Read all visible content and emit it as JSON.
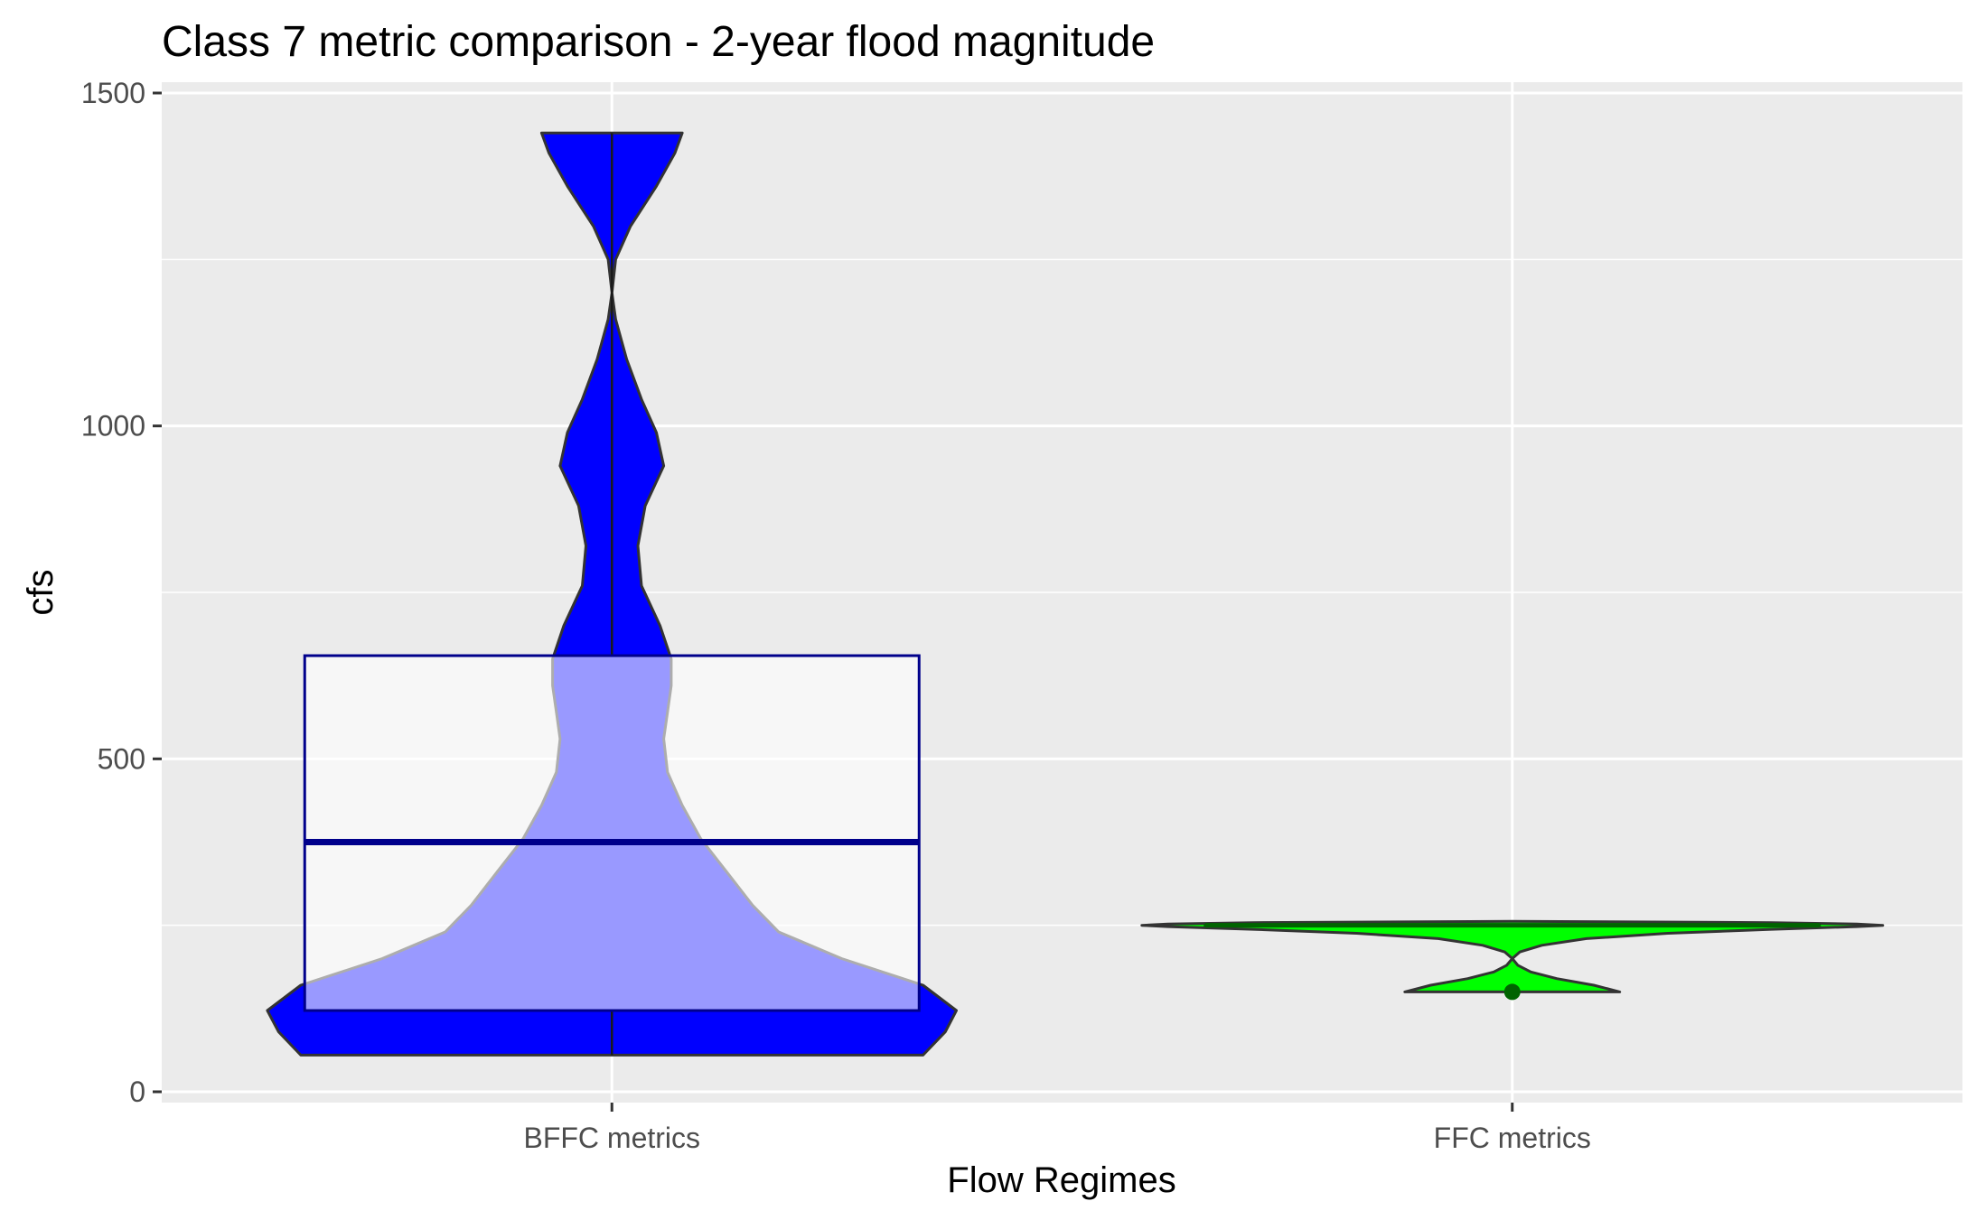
{
  "chart_data": {
    "type": "violin",
    "title": "Class 7 metric comparison - 2-year flood magnitude",
    "xlabel": "Flow Regimes",
    "ylabel": "cfs",
    "ylim": [
      0,
      1500
    ],
    "yticks": [
      0,
      500,
      1000,
      1500
    ],
    "y_minor_gridlines": [
      250,
      750,
      1250
    ],
    "grid": true,
    "legend": "none",
    "categories": [
      "BFFC metrics",
      "FFC metrics"
    ],
    "series": [
      {
        "category": "BFFC metrics",
        "fill": "#0000ff",
        "min": 55,
        "max": 1440,
        "box": {
          "q1": 122,
          "median": 375,
          "q3": 655,
          "whisker_low": 55,
          "whisker_high": 1440
        },
        "density_profile": [
          [
            55,
            0.84
          ],
          [
            90,
            0.9
          ],
          [
            122,
            0.93
          ],
          [
            160,
            0.84
          ],
          [
            200,
            0.62
          ],
          [
            240,
            0.45
          ],
          [
            280,
            0.38
          ],
          [
            330,
            0.31
          ],
          [
            380,
            0.24
          ],
          [
            430,
            0.19
          ],
          [
            480,
            0.15
          ],
          [
            530,
            0.14
          ],
          [
            570,
            0.15
          ],
          [
            610,
            0.16
          ],
          [
            650,
            0.16
          ],
          [
            700,
            0.13
          ],
          [
            760,
            0.08
          ],
          [
            820,
            0.07
          ],
          [
            880,
            0.09
          ],
          [
            940,
            0.14
          ],
          [
            990,
            0.12
          ],
          [
            1040,
            0.08
          ],
          [
            1100,
            0.04
          ],
          [
            1160,
            0.01
          ],
          [
            1200,
            0.0
          ],
          [
            1250,
            0.01
          ],
          [
            1300,
            0.05
          ],
          [
            1360,
            0.12
          ],
          [
            1410,
            0.17
          ],
          [
            1440,
            0.19
          ]
        ]
      },
      {
        "category": "FFC metrics",
        "fill": "#00ff00",
        "min": 150,
        "max": 250,
        "box": {
          "q1": 250,
          "median": 250,
          "q3": 250,
          "whisker_low": 250,
          "whisker_high": 250
        },
        "outliers": [
          150
        ],
        "density_profile": [
          [
            150,
            0.29
          ],
          [
            160,
            0.22
          ],
          [
            170,
            0.12
          ],
          [
            180,
            0.05
          ],
          [
            190,
            0.015
          ],
          [
            200,
            0.0
          ],
          [
            210,
            0.02
          ],
          [
            220,
            0.08
          ],
          [
            230,
            0.2
          ],
          [
            238,
            0.42
          ],
          [
            244,
            0.7
          ],
          [
            248,
            0.93
          ],
          [
            250,
            1.0
          ],
          [
            252,
            0.93
          ],
          [
            254,
            0.7
          ],
          [
            256,
            0.0
          ]
        ]
      }
    ]
  }
}
